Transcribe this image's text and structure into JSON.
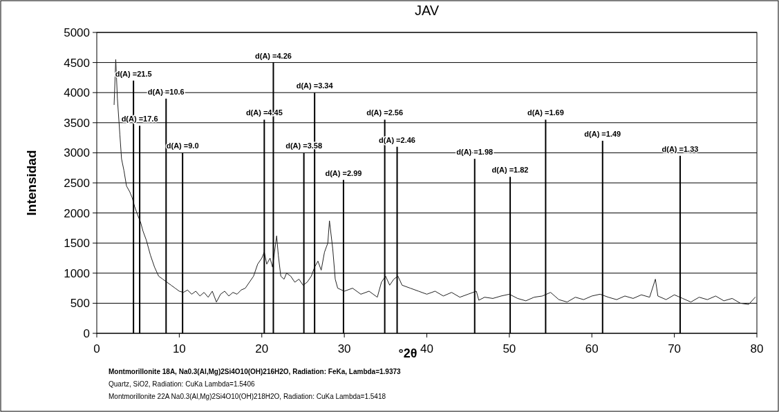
{
  "chart_data": {
    "type": "line",
    "title": "JAV",
    "xlabel": "°2θ",
    "ylabel": "Intensidad",
    "xlim": [
      0,
      80
    ],
    "xticks": [
      0,
      10,
      20,
      30,
      40,
      50,
      60,
      70,
      80
    ],
    "ylim": [
      0,
      5000
    ],
    "yticks": [
      0,
      500,
      1000,
      1500,
      2000,
      2500,
      3000,
      3500,
      4000,
      4500,
      5000
    ],
    "grid": "y",
    "series": [
      {
        "color": "#222222",
        "x": [
          2.1,
          2.3,
          2.5,
          2.8,
          3.0,
          3.3,
          3.6,
          4.0,
          4.3,
          4.6,
          5.0,
          5.3,
          5.6,
          6.0,
          6.5,
          7.0,
          7.5,
          8.0,
          8.5,
          9.0,
          9.5,
          10,
          10.5,
          11,
          11.5,
          12,
          12.5,
          13,
          13.5,
          14,
          14.5,
          15,
          15.5,
          16,
          16.5,
          17,
          17.5,
          18,
          18.5,
          19,
          19.5,
          20,
          20.3,
          20.6,
          21,
          21.3,
          21.8,
          22,
          22.3,
          22.7,
          23,
          23.5,
          24,
          24.5,
          25,
          25.5,
          26,
          26.4,
          26.8,
          27.2,
          27.6,
          28,
          28.2,
          28.6,
          28.9,
          29.2,
          30,
          31,
          32,
          33,
          34,
          34.5,
          35,
          35.5,
          36,
          36.5,
          37,
          38,
          39,
          40,
          41,
          42,
          43,
          44,
          45,
          46,
          46.3,
          47,
          48,
          49,
          50,
          51,
          52,
          53,
          54,
          55,
          56,
          57,
          58,
          59,
          60,
          61,
          62,
          63,
          64,
          65,
          66,
          67,
          67.7,
          68,
          69,
          70,
          71,
          72,
          73,
          74,
          75,
          76,
          77,
          78,
          79,
          79.8
        ],
        "values": [
          3800,
          4550,
          3900,
          3300,
          2900,
          2700,
          2450,
          2350,
          2250,
          2100,
          1950,
          1850,
          1700,
          1550,
          1300,
          1100,
          950,
          900,
          850,
          800,
          750,
          700,
          680,
          720,
          650,
          700,
          620,
          680,
          600,
          700,
          520,
          650,
          700,
          620,
          680,
          650,
          720,
          750,
          850,
          950,
          1150,
          1250,
          1350,
          1150,
          1250,
          1100,
          1620,
          1300,
          950,
          900,
          1000,
          950,
          850,
          900,
          800,
          850,
          950,
          1100,
          1200,
          1050,
          1350,
          1500,
          1870,
          1400,
          900,
          750,
          700,
          750,
          650,
          700,
          600,
          850,
          950,
          800,
          900,
          950,
          800,
          750,
          700,
          650,
          700,
          620,
          680,
          600,
          650,
          700,
          550,
          600,
          580,
          620,
          650,
          580,
          540,
          600,
          620,
          680,
          560,
          520,
          600,
          560,
          620,
          650,
          600,
          560,
          620,
          580,
          640,
          600,
          900,
          620,
          560,
          640,
          580,
          520,
          600,
          560,
          620,
          540,
          580,
          500,
          480,
          600
        ]
      },
      {
        "type": "bar",
        "color": "#000000",
        "x": [
          4.45,
          5.2,
          8.4,
          10.4,
          20.3,
          21.4,
          25.1,
          26.4,
          29.9,
          34.9,
          36.4,
          45.8,
          50.1,
          54.4,
          61.3,
          70.7
        ],
        "values": [
          4200,
          3450,
          3900,
          3000,
          3550,
          4500,
          3000,
          4000,
          2550,
          3550,
          3100,
          2900,
          2600,
          3550,
          3200,
          2950
        ]
      }
    ],
    "annotations": [
      {
        "text": "d(A) =21.5",
        "x": 4.45,
        "y": 4200
      },
      {
        "text": "d(A) =17.6",
        "x": 5.2,
        "y": 3450
      },
      {
        "text": "d(A) =10.6",
        "x": 8.4,
        "y": 3900
      },
      {
        "text": "d(A) =9.0",
        "x": 10.4,
        "y": 3000
      },
      {
        "text": "d(A) =4.45",
        "x": 20.3,
        "y": 3550
      },
      {
        "text": "d(A) =4.26",
        "x": 21.4,
        "y": 4500
      },
      {
        "text": "d(A) =3.58",
        "x": 25.1,
        "y": 3000
      },
      {
        "text": "d(A) =3.34",
        "x": 26.4,
        "y": 4000
      },
      {
        "text": "d(A) =2.99",
        "x": 29.9,
        "y": 2550
      },
      {
        "text": "d(A) =2.56",
        "x": 34.9,
        "y": 3550
      },
      {
        "text": "d(A) =2.46",
        "x": 36.4,
        "y": 3100
      },
      {
        "text": "d(A) =1.98",
        "x": 45.8,
        "y": 2900
      },
      {
        "text": "d(A) =1.82",
        "x": 50.1,
        "y": 2600
      },
      {
        "text": "d(A) =1.69",
        "x": 54.4,
        "y": 3550
      },
      {
        "text": "d(A) =1.49",
        "x": 61.3,
        "y": 3200
      },
      {
        "text": "d(A) =1.33",
        "x": 70.7,
        "y": 2950
      },
      "Montmorillonite 18A, Na0.3(Al,Mg)2Si4O10(OH)216H2O, Radiation: FeKa, Lambda=1.9373",
      "Quartz, SiO2, Radiation: CuKa  Lambda=1.5406",
      "Montmorillonite 22A  Na0.3(Al,Mg)2Si4O10(OH)218H2O, Radiation: CuKa  Lambda=1.5418"
    ]
  }
}
